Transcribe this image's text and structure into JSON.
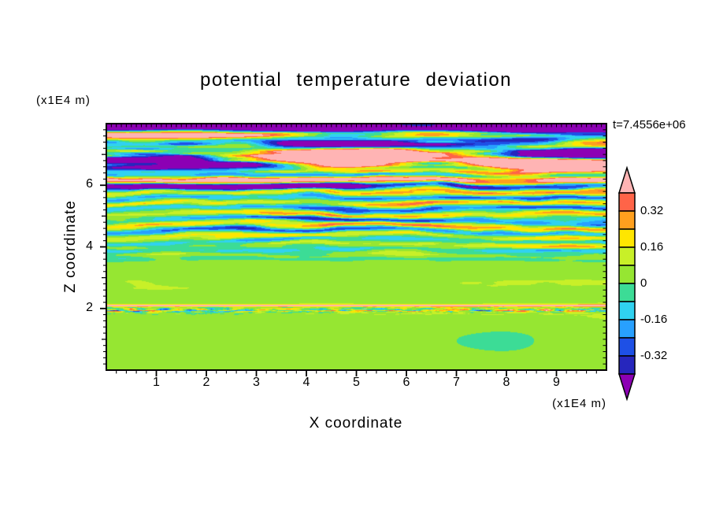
{
  "title": "potential temperature deviation",
  "timestamp": "t=7.4556e+06",
  "axes": {
    "x_label": "X coordinate",
    "x_unit": "(x1E4 m)",
    "y_label": "Z coordinate",
    "y_unit": "(x1E4 m)",
    "x_ticks": [
      "1",
      "2",
      "3",
      "4",
      "5",
      "6",
      "7",
      "8",
      "9"
    ],
    "x_tick_values": [
      1,
      2,
      3,
      4,
      5,
      6,
      7,
      8,
      9
    ],
    "y_ticks": [
      "2",
      "4",
      "6"
    ],
    "y_tick_values": [
      2,
      4,
      6
    ],
    "y_medium_ticks": [
      1,
      3,
      5,
      7
    ],
    "x_range": [
      0,
      10
    ],
    "y_range": [
      0,
      8
    ],
    "minor_tick_step": 0.2,
    "top_minor_tick_step": 0.1
  },
  "colorbar": {
    "labels": [
      "0.32",
      "0.16",
      "0",
      "-0.16",
      "-0.32"
    ],
    "label_values": [
      0.32,
      0.16,
      0,
      -0.16,
      -0.32
    ],
    "levels": [
      -0.4,
      -0.32,
      -0.24,
      -0.16,
      -0.08,
      0,
      0.08,
      0.16,
      0.24,
      0.32,
      0.4
    ],
    "colors": [
      "#8c00b4",
      "#2626bd",
      "#1e50e6",
      "#28a0ff",
      "#30d2f0",
      "#3cdc96",
      "#96e632",
      "#c8f028",
      "#ffe600",
      "#ffa01e",
      "#ff6448",
      "#ffb4b4"
    ],
    "extend": "both"
  },
  "chart_data": {
    "type": "heatmap",
    "title": "potential temperature deviation",
    "xlabel": "X coordinate (x1E4 m)",
    "ylabel": "Z coordinate (x1E4 m)",
    "x_range": [
      0,
      10
    ],
    "y_range": [
      0,
      8
    ],
    "x_ticks": [
      1,
      2,
      3,
      4,
      5,
      6,
      7,
      8,
      9
    ],
    "y_ticks": [
      2,
      4,
      6
    ],
    "value_range": [
      -0.4,
      0.4
    ],
    "contour_interval": 0.08,
    "colorbar_labels": [
      0.32,
      0.16,
      0,
      -0.16,
      -0.32
    ],
    "timestamp": "t=7.4556e+06",
    "legend_position": "right",
    "grid": false,
    "regions": [
      {
        "z_range": [
          6.6,
          8.0
        ],
        "character": "breaking-wave region: broad salmon (>0.4) and purple (<-0.4) bands with orange, red and blue fringes; nearly solid purple strip along the very top edge"
      },
      {
        "z_range": [
          5.9,
          6.4
        ],
        "character": "salmon band across most of the width with a thin purple streak below it on the left half"
      },
      {
        "z_range": [
          3.6,
          6.3
        ],
        "character": "fine horizontal striations alternating positive (yellow/orange/red) and negative (cyan/navy) layers, amplitude up to about +/-0.4, vertical spacing about 0.3"
      },
      {
        "z_range": [
          2.3,
          3.6
        ],
        "character": "quiescent near-zero zone: green with faint light-green and cyan patches"
      },
      {
        "z_range": [
          1.8,
          2.2
        ],
        "character": "thin turbulent interface at z=2: small-scale +/-0.4 speckles with a thin salmon filament just above"
      },
      {
        "z_range": [
          0.0,
          1.8
        ],
        "character": "smooth near-zero field: green background with large light-green blobs"
      }
    ]
  }
}
